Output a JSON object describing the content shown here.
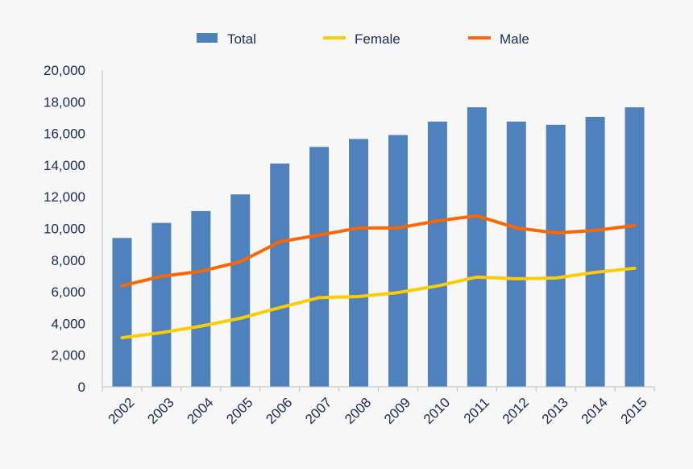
{
  "chart_data": {
    "type": "bar",
    "title": "",
    "xlabel": "",
    "ylabel": "",
    "ylim": [
      0,
      20000
    ],
    "yticks": [
      "0",
      "2,000",
      "4,000",
      "6,000",
      "8,000",
      "10,000",
      "12,000",
      "14,000",
      "16,000",
      "18,000",
      "20,000"
    ],
    "grid": false,
    "legend_position": "top",
    "categories": [
      "2002",
      "2003",
      "2004",
      "2005",
      "2006",
      "2007",
      "2008",
      "2009",
      "2010",
      "2011",
      "2012",
      "2013",
      "2014",
      "2015"
    ],
    "series": [
      {
        "name": "Total",
        "type": "bar",
        "color": "#4f81bd",
        "values": [
          9400,
          10350,
          11100,
          12150,
          14100,
          15150,
          15650,
          15900,
          16750,
          17650,
          16750,
          16550,
          17050,
          17650
        ]
      },
      {
        "name": "Female",
        "type": "line",
        "color": "#ffcc00",
        "values": [
          3100,
          3420,
          3830,
          4330,
          5000,
          5630,
          5700,
          5950,
          6370,
          6930,
          6820,
          6870,
          7230,
          7490
        ]
      },
      {
        "name": "Male",
        "type": "line",
        "color": "#ff6600",
        "values": [
          6380,
          6980,
          7290,
          7900,
          9160,
          9580,
          10030,
          10030,
          10480,
          10800,
          10030,
          9720,
          9870,
          10190
        ]
      }
    ]
  }
}
